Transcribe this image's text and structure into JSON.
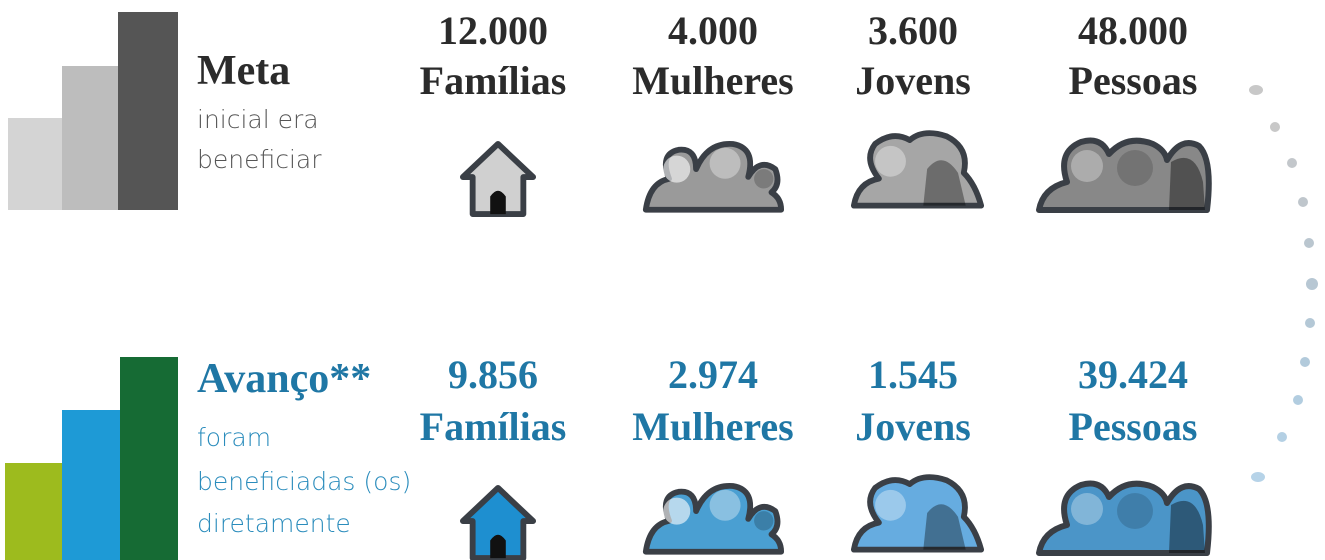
{
  "rows": [
    {
      "title": "Meta",
      "subtitle": [
        "inicial era",
        "beneficiar"
      ],
      "items": [
        {
          "number": "12.000",
          "label": "Famílias"
        },
        {
          "number": "4.000",
          "label": "Mulheres"
        },
        {
          "number": "3.600",
          "label": "Jovens"
        },
        {
          "number": "48.000",
          "label": "Pessoas"
        }
      ]
    },
    {
      "title": "Avanço**",
      "subtitle": [
        "foram",
        "beneficiadas (os)",
        "diretamente"
      ],
      "items": [
        {
          "number": "9.856",
          "label": "Famílias"
        },
        {
          "number": "2.974",
          "label": "Mulheres"
        },
        {
          "number": "1.545",
          "label": "Jovens"
        },
        {
          "number": "39.424",
          "label": "Pessoas"
        }
      ]
    }
  ]
}
